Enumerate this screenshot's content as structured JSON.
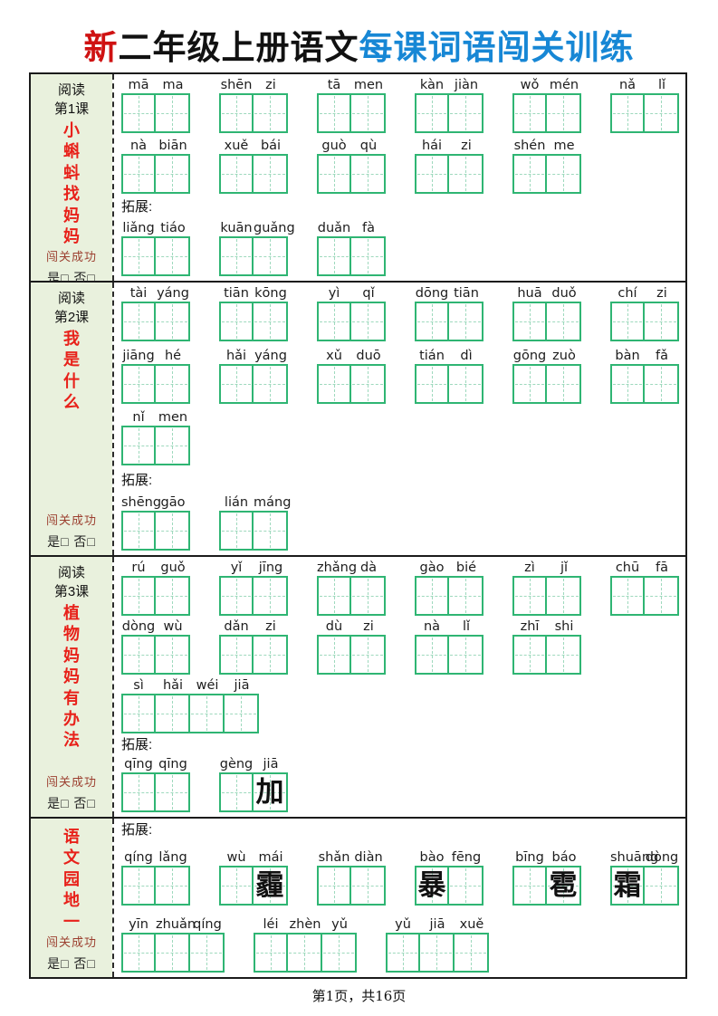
{
  "title": {
    "part_red": "新",
    "part_black": "二年级上册语文",
    "part_blue": "每课词语闯关训练"
  },
  "footer": {
    "page_info": "第1页，共16页"
  },
  "sidebar_common": {
    "success_label": "闯关成功",
    "yesno_label": "是□ 否□"
  },
  "colors": {
    "title_red": "#cf1212",
    "title_blue": "#1787d5",
    "grid_green": "#2fb573",
    "grid_dash": "#9ed9bd",
    "sidebar_bg": "#e9f1dd",
    "lesson_red": "#e8211a",
    "success_red": "#9c4030"
  },
  "sections": [
    {
      "sidebar": {
        "top": [
          "阅读",
          "第1课"
        ],
        "chars": [
          "小",
          "蝌",
          "蚪",
          "找",
          "妈",
          "妈"
        ]
      },
      "rows": [
        {
          "kind": "words",
          "words": [
            {
              "pinyin": [
                "mā",
                "ma"
              ],
              "fill": [
                "",
                ""
              ]
            },
            {
              "pinyin": [
                "shēn",
                "zi"
              ],
              "fill": [
                "",
                ""
              ]
            },
            {
              "pinyin": [
                "tā",
                "men"
              ],
              "fill": [
                "",
                ""
              ]
            },
            {
              "pinyin": [
                "kàn",
                "jiàn"
              ],
              "fill": [
                "",
                ""
              ]
            },
            {
              "pinyin": [
                "wǒ",
                "mén"
              ],
              "fill": [
                "",
                ""
              ]
            },
            {
              "pinyin": [
                "nǎ",
                "lǐ"
              ],
              "fill": [
                "",
                ""
              ]
            }
          ]
        },
        {
          "kind": "words",
          "words": [
            {
              "pinyin": [
                "nà",
                "biān"
              ],
              "fill": [
                "",
                ""
              ]
            },
            {
              "pinyin": [
                "xuě",
                "bái"
              ],
              "fill": [
                "",
                ""
              ]
            },
            {
              "pinyin": [
                "guò",
                "qù"
              ],
              "fill": [
                "",
                ""
              ]
            },
            {
              "pinyin": [
                "hái",
                "zi"
              ],
              "fill": [
                "",
                ""
              ]
            },
            {
              "pinyin": [
                "shén",
                "me"
              ],
              "fill": [
                "",
                ""
              ]
            }
          ]
        },
        {
          "kind": "label",
          "text": "拓展:"
        },
        {
          "kind": "words",
          "words": [
            {
              "pinyin": [
                "liǎng",
                "tiáo"
              ],
              "fill": [
                "",
                ""
              ]
            },
            {
              "pinyin": [
                "kuān",
                "guǎng"
              ],
              "fill": [
                "",
                ""
              ]
            },
            {
              "pinyin": [
                "duǎn",
                "fà"
              ],
              "fill": [
                "",
                ""
              ]
            }
          ]
        }
      ]
    },
    {
      "sidebar": {
        "top": [
          "阅读",
          "第2课"
        ],
        "chars": [
          "我",
          "是",
          "什",
          "么"
        ]
      },
      "rows": [
        {
          "kind": "words",
          "words": [
            {
              "pinyin": [
                "tài",
                "yáng"
              ],
              "fill": [
                "",
                ""
              ]
            },
            {
              "pinyin": [
                "tiān",
                "kōng"
              ],
              "fill": [
                "",
                ""
              ]
            },
            {
              "pinyin": [
                "yì",
                "qǐ"
              ],
              "fill": [
                "",
                ""
              ]
            },
            {
              "pinyin": [
                "dōng",
                "tiān"
              ],
              "fill": [
                "",
                ""
              ]
            },
            {
              "pinyin": [
                "huā",
                "duǒ"
              ],
              "fill": [
                "",
                ""
              ]
            },
            {
              "pinyin": [
                "chí",
                "zi"
              ],
              "fill": [
                "",
                ""
              ]
            }
          ]
        },
        {
          "kind": "words",
          "words": [
            {
              "pinyin": [
                "jiāng",
                "hé"
              ],
              "fill": [
                "",
                ""
              ]
            },
            {
              "pinyin": [
                "hǎi",
                "yáng"
              ],
              "fill": [
                "",
                ""
              ]
            },
            {
              "pinyin": [
                "xǔ",
                "duō"
              ],
              "fill": [
                "",
                ""
              ]
            },
            {
              "pinyin": [
                "tián",
                "dì"
              ],
              "fill": [
                "",
                ""
              ]
            },
            {
              "pinyin": [
                "gōng",
                "zuò"
              ],
              "fill": [
                "",
                ""
              ]
            },
            {
              "pinyin": [
                "bàn",
                "fǎ"
              ],
              "fill": [
                "",
                ""
              ]
            }
          ]
        },
        {
          "kind": "words",
          "words": [
            {
              "pinyin": [
                "nǐ",
                "men"
              ],
              "fill": [
                "",
                ""
              ]
            }
          ]
        },
        {
          "kind": "label",
          "text": "拓展:"
        },
        {
          "kind": "words",
          "words": [
            {
              "pinyin": [
                "shēng",
                "gāo"
              ],
              "fill": [
                "",
                ""
              ]
            },
            {
              "pinyin": [
                "lián",
                "máng"
              ],
              "fill": [
                "",
                ""
              ]
            }
          ]
        }
      ]
    },
    {
      "sidebar": {
        "top": [
          "阅读",
          "第3课"
        ],
        "chars": [
          "植",
          "物",
          "妈",
          "妈",
          "有",
          "办",
          "法"
        ]
      },
      "rows": [
        {
          "kind": "words",
          "words": [
            {
              "pinyin": [
                "rú",
                "guǒ"
              ],
              "fill": [
                "",
                ""
              ]
            },
            {
              "pinyin": [
                "yǐ",
                "jīng"
              ],
              "fill": [
                "",
                ""
              ]
            },
            {
              "pinyin": [
                "zhǎng",
                "dà"
              ],
              "fill": [
                "",
                ""
              ]
            },
            {
              "pinyin": [
                "gào",
                "bié"
              ],
              "fill": [
                "",
                ""
              ]
            },
            {
              "pinyin": [
                "zì",
                "jǐ"
              ],
              "fill": [
                "",
                ""
              ]
            },
            {
              "pinyin": [
                "chū",
                "fā"
              ],
              "fill": [
                "",
                ""
              ]
            }
          ]
        },
        {
          "kind": "words",
          "words": [
            {
              "pinyin": [
                "dòng",
                "wù"
              ],
              "fill": [
                "",
                ""
              ]
            },
            {
              "pinyin": [
                "dǎn",
                "zi"
              ],
              "fill": [
                "",
                ""
              ]
            },
            {
              "pinyin": [
                "dù",
                "zi"
              ],
              "fill": [
                "",
                ""
              ]
            },
            {
              "pinyin": [
                "nà",
                "lǐ"
              ],
              "fill": [
                "",
                ""
              ]
            },
            {
              "pinyin": [
                "zhī",
                "shi"
              ],
              "fill": [
                "",
                ""
              ]
            }
          ]
        },
        {
          "kind": "words",
          "words": [
            {
              "pinyin": [
                "sì",
                "hǎi",
                "wéi",
                "jiā"
              ],
              "fill": [
                "",
                "",
                "",
                ""
              ]
            }
          ]
        },
        {
          "kind": "label",
          "text": "拓展:"
        },
        {
          "kind": "words",
          "words": [
            {
              "pinyin": [
                "qīng",
                "qīng"
              ],
              "fill": [
                "",
                ""
              ]
            },
            {
              "pinyin": [
                "gèng",
                "jiā"
              ],
              "fill": [
                "",
                "加"
              ]
            }
          ]
        }
      ]
    },
    {
      "sidebar": {
        "top": [],
        "chars": [
          "语",
          "文",
          "园",
          "地",
          "一"
        ]
      },
      "rows": [
        {
          "kind": "label",
          "text": "拓展:"
        },
        {
          "kind": "words",
          "words": [
            {
              "pinyin": [
                "qíng",
                "lǎng"
              ],
              "fill": [
                "",
                ""
              ]
            },
            {
              "pinyin": [
                "wù",
                "mái"
              ],
              "fill": [
                "",
                "霾"
              ]
            },
            {
              "pinyin": [
                "shǎn",
                "diàn"
              ],
              "fill": [
                "",
                ""
              ]
            },
            {
              "pinyin": [
                "bào",
                "fēng"
              ],
              "fill": [
                "暴",
                ""
              ]
            },
            {
              "pinyin": [
                "bīng",
                "báo"
              ],
              "fill": [
                "",
                "雹"
              ]
            },
            {
              "pinyin": [
                "shuāng",
                "dòng"
              ],
              "fill": [
                "霜",
                ""
              ]
            }
          ]
        },
        {
          "kind": "words",
          "words": [
            {
              "pinyin": [
                "yīn",
                "zhuǎn",
                "qíng"
              ],
              "fill": [
                "",
                "",
                ""
              ]
            },
            {
              "pinyin": [
                "léi",
                "zhèn",
                "yǔ"
              ],
              "fill": [
                "",
                "",
                ""
              ]
            },
            {
              "pinyin": [
                "yǔ",
                "jiā",
                "xuě"
              ],
              "fill": [
                "",
                "",
                ""
              ]
            }
          ]
        }
      ]
    }
  ]
}
